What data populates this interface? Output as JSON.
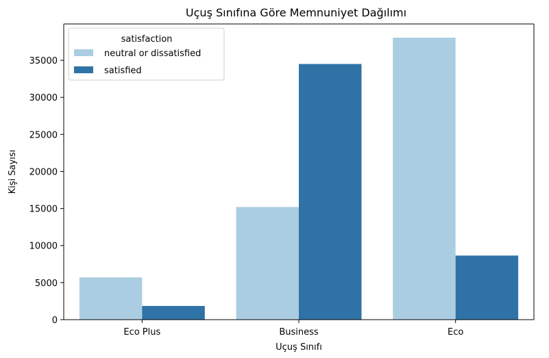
{
  "chart_data": {
    "type": "bar",
    "title": "Uçuş Sınıfına Göre Memnuniyet Dağılımı",
    "xlabel": "Uçuş Sınıfı",
    "ylabel": "Kişi Sayısı",
    "categories": [
      "Eco Plus",
      "Business",
      "Eco"
    ],
    "series": [
      {
        "name": "neutral or dissatisfied",
        "values": [
          5700,
          15200,
          38050
        ],
        "color": "#abcde2"
      },
      {
        "name": "satisfied",
        "values": [
          1850,
          34500,
          8650
        ],
        "color": "#2f73a6"
      }
    ],
    "ylim": [
      0,
      39900
    ],
    "yticks": [
      0,
      5000,
      10000,
      15000,
      20000,
      25000,
      30000,
      35000
    ],
    "yticks_labels": [
      "0",
      "5000",
      "10000",
      "15000",
      "20000",
      "25000",
      "30000",
      "35000"
    ],
    "legend": {
      "title": "satisfaction",
      "placement": "top-left"
    },
    "grid": false
  }
}
